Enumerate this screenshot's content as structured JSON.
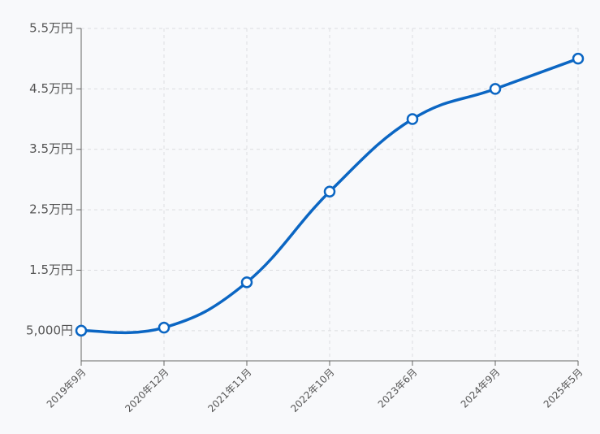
{
  "chart_data": {
    "type": "line",
    "categories": [
      "2019年9月",
      "2020年12月",
      "2021年11月",
      "2022年10月",
      "2023年6月",
      "2024年9月",
      "2025年5月"
    ],
    "series": [
      {
        "color": "#0b66c3",
        "values": [
          5000,
          5500,
          13000,
          28000,
          40000,
          45000,
          50000
        ]
      }
    ],
    "ylim": [
      0,
      55000
    ],
    "yticks": [
      {
        "value": 5000,
        "label": "5,000円"
      },
      {
        "value": 15000,
        "label": "1.5万円"
      },
      {
        "value": 25000,
        "label": "2.5万円"
      },
      {
        "value": 35000,
        "label": "3.5万円"
      },
      {
        "value": 45000,
        "label": "4.5万円"
      },
      {
        "value": 55000,
        "label": "5.5万円"
      }
    ],
    "grid": true
  }
}
